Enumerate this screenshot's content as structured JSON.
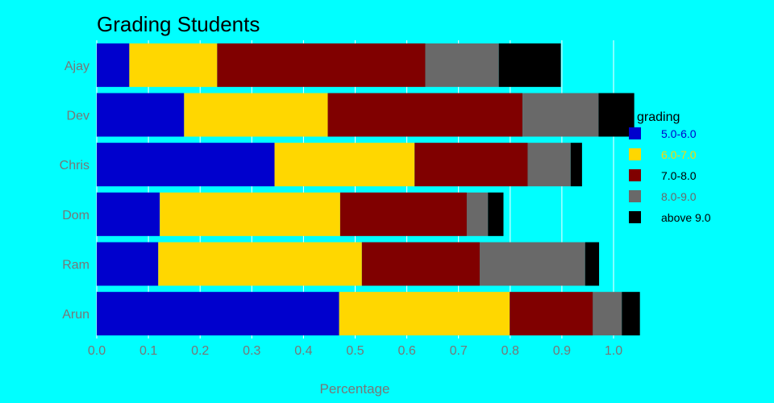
{
  "chart_data": {
    "type": "bar",
    "orientation": "horizontal",
    "stacked": true,
    "title": "Grading Students",
    "xlabel": "Percentage",
    "ylabel": "",
    "categories": [
      "Ajay",
      "Dev",
      "Chris",
      "Dom",
      "Ram",
      "Arun"
    ],
    "xlim": [
      0,
      1.05
    ],
    "xticks": [
      "0.0",
      "0.1",
      "0.2",
      "0.3",
      "0.4",
      "0.5",
      "0.6",
      "0.7",
      "0.8",
      "0.9",
      "1.0"
    ],
    "grid": true,
    "legend": {
      "title": "grading",
      "position": "right"
    },
    "series": [
      {
        "name": "5.0-6.0",
        "color": "#0000cd",
        "label_color": "#0000cd",
        "values": [
          0.063,
          0.169,
          0.344,
          0.122,
          0.119,
          0.469
        ]
      },
      {
        "name": "6.0-7.0",
        "color": "#ffd700",
        "label_color": "#ffd700",
        "values": [
          0.17,
          0.278,
          0.271,
          0.349,
          0.394,
          0.33
        ]
      },
      {
        "name": "7.0-8.0",
        "color": "#800000",
        "label_color": "#000000",
        "values": [
          0.403,
          0.377,
          0.219,
          0.245,
          0.228,
          0.161
        ]
      },
      {
        "name": "8.0-9.0",
        "color": "#696969",
        "label_color": "#696969",
        "values": [
          0.142,
          0.147,
          0.083,
          0.041,
          0.204,
          0.056
        ]
      },
      {
        "name": "above 9.0",
        "color": "#000000",
        "label_color": "#000000",
        "values": [
          0.12,
          0.069,
          0.022,
          0.03,
          0.027,
          0.035
        ]
      }
    ]
  }
}
